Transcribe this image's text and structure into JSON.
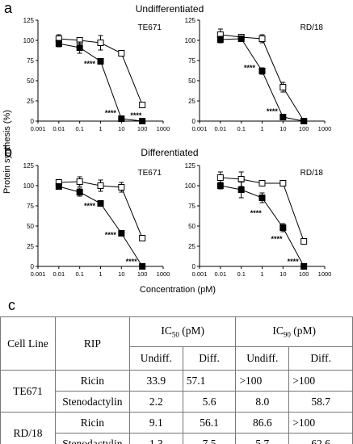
{
  "figure": {
    "panel_a": "a",
    "panel_b": "b",
    "panel_c": "c",
    "section_a_title": "Undifferentiated",
    "section_b_title": "Differentiated",
    "ylabel": "Protein synthesis (%)",
    "xlabel": "Concentration (pM)"
  },
  "chart_data": [
    {
      "type": "line",
      "panel": "a",
      "cell_line": "TE671",
      "x_scale": "log",
      "xlim": [
        0.001,
        1000
      ],
      "ylim": [
        0,
        125
      ],
      "x_ticks": [
        "0.001",
        "0.01",
        "0.1",
        "1",
        "10",
        "100",
        "1000"
      ],
      "y_ticks": [
        "0",
        "25",
        "50",
        "75",
        "100",
        "125"
      ],
      "series": [
        {
          "marker": "open-square",
          "x": [
            0.01,
            0.1,
            1,
            10,
            100
          ],
          "y": [
            102,
            100,
            97,
            84,
            20
          ],
          "err": [
            5,
            3,
            9,
            3,
            2
          ]
        },
        {
          "marker": "filled-square",
          "x": [
            0.01,
            0.1,
            1,
            10,
            100
          ],
          "y": [
            96,
            91,
            74,
            3,
            0
          ],
          "err": [
            4,
            7,
            3,
            2,
            1
          ]
        }
      ],
      "annotations": [
        {
          "text": "****",
          "x": 0.3,
          "y": 68
        },
        {
          "text": "****",
          "x": 3,
          "y": 7
        },
        {
          "text": "****",
          "x": 50,
          "y": 4
        }
      ]
    },
    {
      "type": "line",
      "panel": "a",
      "cell_line": "RD/18",
      "x_scale": "log",
      "xlim": [
        0.001,
        1000
      ],
      "ylim": [
        0,
        125
      ],
      "x_ticks": [
        "0.001",
        "0.01",
        "0.1",
        "1",
        "10",
        "100",
        "1000"
      ],
      "y_ticks": [
        "0",
        "25",
        "50",
        "75",
        "100",
        "125"
      ],
      "series": [
        {
          "marker": "open-square",
          "x": [
            0.01,
            0.1,
            1,
            10,
            100
          ],
          "y": [
            107,
            104,
            102,
            42,
            0
          ],
          "err": [
            7,
            3,
            5,
            6,
            1
          ]
        },
        {
          "marker": "filled-square",
          "x": [
            0.01,
            0.1,
            1,
            10,
            100
          ],
          "y": [
            101,
            102,
            62,
            5,
            0
          ],
          "err": [
            4,
            3,
            4,
            2,
            1
          ]
        }
      ],
      "annotations": [
        {
          "text": "****",
          "x": 0.25,
          "y": 63
        },
        {
          "text": "****",
          "x": 3,
          "y": 9
        }
      ]
    },
    {
      "type": "line",
      "panel": "b",
      "cell_line": "TE671",
      "x_scale": "log",
      "xlim": [
        0.001,
        1000
      ],
      "ylim": [
        0,
        125
      ],
      "x_ticks": [
        "0.001",
        "0.01",
        "0.1",
        "1",
        "10",
        "100",
        "1000"
      ],
      "y_ticks": [
        "0",
        "25",
        "50",
        "75",
        "100",
        "125"
      ],
      "series": [
        {
          "marker": "open-square",
          "x": [
            0.01,
            0.1,
            1,
            10,
            100
          ],
          "y": [
            104,
            105,
            100,
            98,
            35
          ],
          "err": [
            3,
            6,
            7,
            6,
            3
          ]
        },
        {
          "marker": "filled-square",
          "x": [
            0.01,
            0.1,
            1,
            10,
            100
          ],
          "y": [
            99,
            92,
            78,
            41,
            0
          ],
          "err": [
            3,
            5,
            3,
            2,
            1
          ]
        }
      ],
      "annotations": [
        {
          "text": "****",
          "x": 0.3,
          "y": 72
        },
        {
          "text": "****",
          "x": 3,
          "y": 36
        },
        {
          "text": "****",
          "x": 30,
          "y": 3
        }
      ]
    },
    {
      "type": "line",
      "panel": "b",
      "cell_line": "RD/18",
      "x_scale": "log",
      "xlim": [
        0.001,
        1000
      ],
      "ylim": [
        0,
        125
      ],
      "x_ticks": [
        "0.001",
        "0.01",
        "0.1",
        "1",
        "10",
        "100",
        "1000"
      ],
      "y_ticks": [
        "0",
        "25",
        "50",
        "75",
        "100",
        "125"
      ],
      "series": [
        {
          "marker": "open-square",
          "x": [
            0.01,
            0.1,
            1,
            10,
            100
          ],
          "y": [
            110,
            108,
            103,
            103,
            31
          ],
          "err": [
            7,
            9,
            3,
            3,
            3
          ]
        },
        {
          "marker": "filled-square",
          "x": [
            0.01,
            0.1,
            1,
            10,
            100
          ],
          "y": [
            100,
            95,
            85,
            48,
            0
          ],
          "err": [
            4,
            10,
            6,
            5,
            1
          ]
        }
      ],
      "annotations": [
        {
          "text": "****",
          "x": 0.5,
          "y": 63
        },
        {
          "text": "****",
          "x": 5,
          "y": 31
        },
        {
          "text": "****",
          "x": 30,
          "y": 3
        }
      ]
    },
    {
      "type": "table",
      "panel": "c",
      "headers": {
        "cell_line": "Cell Line",
        "rip": "RIP",
        "ic50": "IC50 (pM)",
        "ic90": "IC90 (pM)",
        "undiff": "Undiff.",
        "diff": "Diff."
      },
      "rows": [
        {
          "cell_line": "TE671",
          "rip": "Ricin",
          "ic50_undiff": "33.9",
          "ic50_diff": "57.1",
          "ic90_undiff": ">100",
          "ic90_diff": ">100"
        },
        {
          "cell_line": "TE671",
          "rip": "Stenodactylin",
          "ic50_undiff": "2.2",
          "ic50_diff": "5.6",
          "ic90_undiff": "8.0",
          "ic90_diff": "58.7"
        },
        {
          "cell_line": "RD/18",
          "rip": "Ricin",
          "ic50_undiff": "9.1",
          "ic50_diff": "56.1",
          "ic90_undiff": "86.6",
          "ic90_diff": ">100"
        },
        {
          "cell_line": "RD/18",
          "rip": "Stenodactylin",
          "ic50_undiff": "1.3",
          "ic50_diff": "7.5",
          "ic90_undiff": "5.7",
          "ic90_diff": "62.6"
        }
      ]
    }
  ],
  "table": {
    "h_cell_line": "Cell Line",
    "h_rip": "RIP",
    "h_ic50_prefix": "IC",
    "h_ic50_sub": "50",
    "h_ic50_suffix": " (pM)",
    "h_ic90_prefix": "IC",
    "h_ic90_sub": "90",
    "h_ic90_suffix": " (pM)",
    "h_undiff_1": "Undiff.",
    "h_diff_1": "Diff.",
    "h_undiff_2": "Undiff.",
    "h_diff_2": "Diff.",
    "te671": "TE671",
    "rd18": "RD/18",
    "r1": {
      "rip": "Ricin",
      "a": "33.9",
      "b": "57.1",
      "c": ">100",
      "d": ">100"
    },
    "r2": {
      "rip": "Stenodactylin",
      "a": "2.2",
      "b": "5.6",
      "c": "8.0",
      "d": "58.7"
    },
    "r3": {
      "rip": "Ricin",
      "a": "9.1",
      "b": "56.1",
      "c": "86.6",
      "d": ">100"
    },
    "r4": {
      "rip": "Stenodactylin",
      "a": "1.3",
      "b": "7.5",
      "c": "5.7",
      "d": "62.6"
    }
  }
}
